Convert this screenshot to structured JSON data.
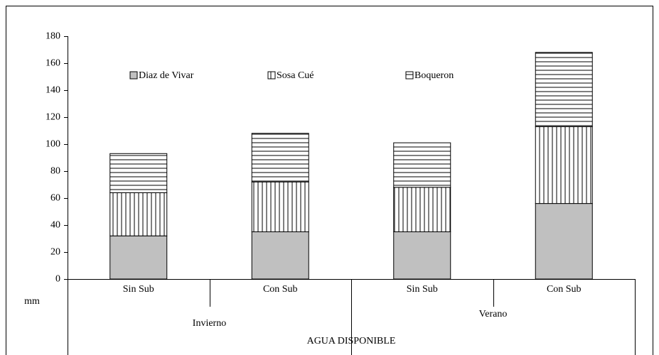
{
  "chart_data": {
    "type": "stacked_bar",
    "ylabel": "mm",
    "xlabel": "AGUA DISPONIBLE",
    "categories": [
      "Sin Sub",
      "Con Sub",
      "Sin Sub",
      "Con Sub"
    ],
    "groups": [
      "Invierno",
      "Verano"
    ],
    "series": [
      {
        "name": "Diaz de Vivar",
        "color": "#c0c0c0",
        "pattern": "solid",
        "values": [
          32,
          35,
          35,
          56
        ]
      },
      {
        "name": "Sosa Cué",
        "color": "#ffffff",
        "pattern": "vertical",
        "values": [
          32,
          37,
          33,
          57
        ]
      },
      {
        "name": "Boqueron",
        "color": "#ffffff",
        "pattern": "horizontal",
        "values": [
          29,
          36,
          33,
          55
        ]
      }
    ],
    "ylim": [
      0,
      180
    ],
    "yticks": [
      0,
      20,
      40,
      60,
      80,
      100,
      120,
      140,
      160,
      180
    ],
    "legend": "top"
  }
}
